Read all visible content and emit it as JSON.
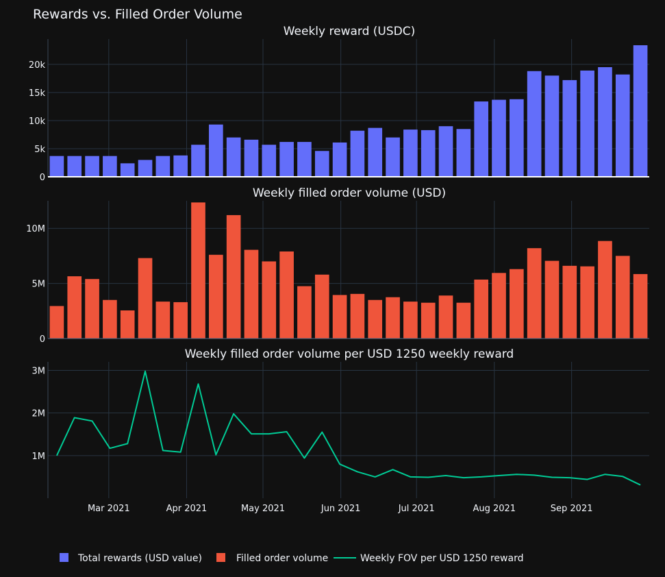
{
  "colors": {
    "background": "#111111",
    "grid": "#283442",
    "text": "#f2f5fa",
    "rewards": "#636efa",
    "volume": "#ef553b",
    "ratio": "#00cc96"
  },
  "chart_data": {
    "type": "bar",
    "title": "Rewards vs. Filled Order Volume",
    "weeks": 34,
    "x_tick_labels": [
      "Mar 2021",
      "Apr 2021",
      "May 2021",
      "Jun 2021",
      "Jul 2021",
      "Aug 2021",
      "Sep 2021"
    ],
    "x_tick_positions": [
      2.94,
      7.34,
      11.66,
      16.06,
      20.34,
      24.74,
      29.11
    ],
    "legend": {
      "placement": "bottom-left",
      "items": [
        {
          "label": "Total rewards (USD value)",
          "kind": "square",
          "color_key": "rewards"
        },
        {
          "label": "Filled order volume",
          "kind": "square",
          "color_key": "volume"
        },
        {
          "label": "Weekly FOV per USD 1250 reward",
          "kind": "line",
          "color_key": "ratio"
        }
      ]
    },
    "panels": [
      {
        "key": "rewards",
        "subtitle": "Weekly reward (USDC)",
        "type": "bar",
        "series_name": "Total rewards (USD value)",
        "ylim": [
          0,
          24500
        ],
        "y_ticks": [
          {
            "v": 0,
            "label": "0"
          },
          {
            "v": 5000,
            "label": "5k"
          },
          {
            "v": 10000,
            "label": "10k"
          },
          {
            "v": 15000,
            "label": "15k"
          },
          {
            "v": 20000,
            "label": "20k"
          }
        ],
        "values": [
          3700,
          3700,
          3700,
          3700,
          2400,
          3000,
          3700,
          3800,
          5700,
          9300,
          7000,
          6600,
          5700,
          6200,
          6200,
          4600,
          6100,
          8200,
          8700,
          7000,
          8400,
          8300,
          9000,
          8500,
          13400,
          13700,
          13800,
          18800,
          18000,
          17200,
          18900,
          19500,
          18200,
          23400
        ]
      },
      {
        "key": "volume",
        "subtitle": "Weekly filled order volume (USD)",
        "type": "bar",
        "series_name": "Filled order volume",
        "ylim": [
          0,
          12500000
        ],
        "y_ticks": [
          {
            "v": 0,
            "label": "0"
          },
          {
            "v": 5000000,
            "label": "5M"
          },
          {
            "v": 10000000,
            "label": "10M"
          }
        ],
        "values": [
          2950000,
          5650000,
          5400000,
          3500000,
          2550000,
          7300000,
          3350000,
          3300000,
          12350000,
          7600000,
          11200000,
          8050000,
          7000000,
          7900000,
          4750000,
          5800000,
          3950000,
          4050000,
          3500000,
          3750000,
          3350000,
          3250000,
          3900000,
          3250000,
          5350000,
          5950000,
          6300000,
          8200000,
          7050000,
          6600000,
          6550000,
          8850000,
          7500000,
          5850000
        ]
      },
      {
        "key": "ratio",
        "subtitle": "Weekly filled order volume per USD 1250 weekly reward",
        "type": "line",
        "series_name": "Weekly FOV per USD 1250 reward",
        "ylim": [
          0,
          3200000
        ],
        "y_ticks": [
          {
            "v": 1000000,
            "label": "1M"
          },
          {
            "v": 2000000,
            "label": "2M"
          },
          {
            "v": 3000000,
            "label": "3M"
          }
        ],
        "values": [
          1000000,
          1890000,
          1810000,
          1170000,
          1280000,
          2980000,
          1120000,
          1080000,
          2680000,
          1020000,
          1980000,
          1510000,
          1510000,
          1560000,
          940000,
          1550000,
          800000,
          620000,
          500000,
          670000,
          500000,
          490000,
          530000,
          480000,
          500000,
          530000,
          560000,
          540000,
          490000,
          480000,
          440000,
          560000,
          510000,
          310000
        ]
      }
    ]
  }
}
